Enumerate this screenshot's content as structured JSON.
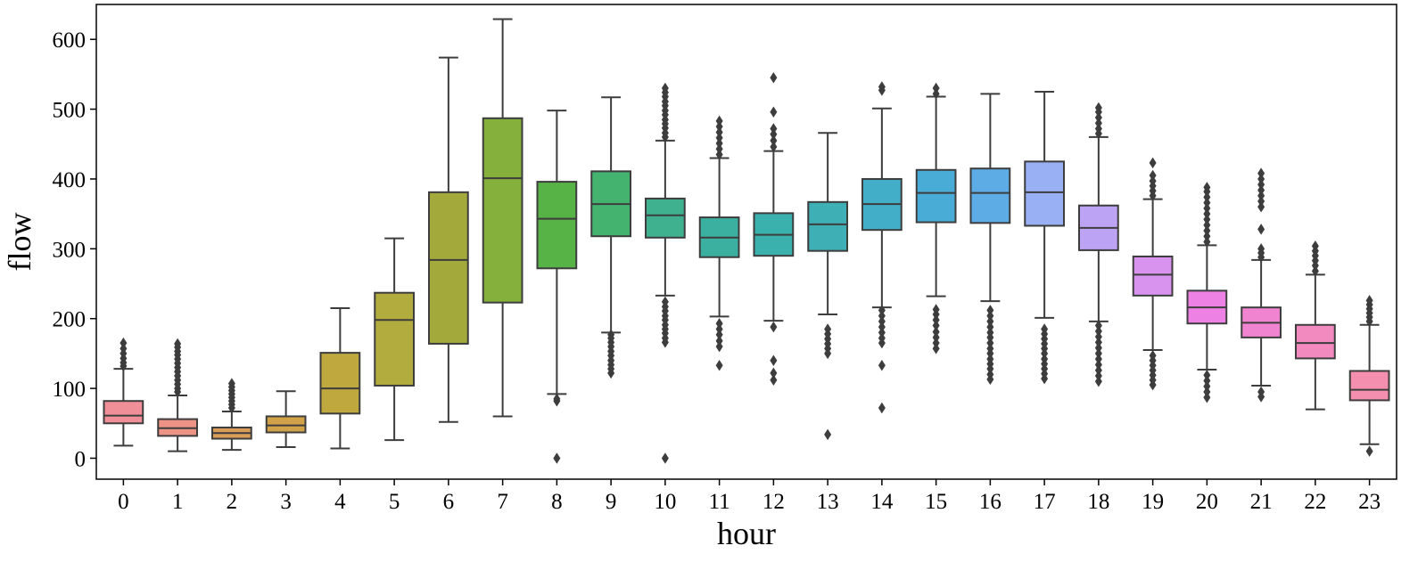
{
  "chart_data": {
    "type": "boxplot",
    "title": "",
    "xlabel": "hour",
    "ylabel": "flow",
    "ylim": [
      -30,
      650
    ],
    "yticks": [
      0,
      100,
      200,
      300,
      400,
      500,
      600
    ],
    "grid": false,
    "categories": [
      "0",
      "1",
      "2",
      "3",
      "4",
      "5",
      "6",
      "7",
      "8",
      "9",
      "10",
      "11",
      "12",
      "13",
      "14",
      "15",
      "16",
      "17",
      "18",
      "19",
      "20",
      "21",
      "22",
      "23"
    ],
    "colors": [
      "#f08f97",
      "#ec9385",
      "#d99d57",
      "#d2a249",
      "#bfa83d",
      "#b1ac3d",
      "#a3a93b",
      "#86b03c",
      "#57b345",
      "#43b36f",
      "#3fb18f",
      "#3cb0a0",
      "#3bb1ad",
      "#3eafb5",
      "#42aec7",
      "#48acd7",
      "#5dace6",
      "#9ab0f4",
      "#bca3f3",
      "#d893ee",
      "#ee81e4",
      "#f084d1",
      "#f28ac0",
      "#f48faf"
    ],
    "boxes": [
      {
        "q1": 50,
        "median": 61,
        "q3": 82,
        "whisker_low": 18,
        "whisker_high": 128,
        "outliers": [
          132,
          137,
          143,
          150,
          157,
          165
        ]
      },
      {
        "q1": 32,
        "median": 43,
        "q3": 56,
        "whisker_low": 10,
        "whisker_high": 90,
        "outliers": [
          95,
          100,
          106,
          112,
          118,
          124,
          130,
          136,
          142,
          148,
          153,
          159,
          164
        ]
      },
      {
        "q1": 28,
        "median": 36,
        "q3": 44,
        "whisker_low": 12,
        "whisker_high": 67,
        "outliers": [
          72,
          77,
          82,
          87,
          92,
          97,
          102,
          107
        ]
      },
      {
        "q1": 37,
        "median": 47,
        "q3": 60,
        "whisker_low": 16,
        "whisker_high": 96,
        "outliers": []
      },
      {
        "q1": 64,
        "median": 100,
        "q3": 151,
        "whisker_low": 14,
        "whisker_high": 215,
        "outliers": []
      },
      {
        "q1": 104,
        "median": 198,
        "q3": 237,
        "whisker_low": 26,
        "whisker_high": 315,
        "outliers": []
      },
      {
        "q1": 164,
        "median": 284,
        "q3": 381,
        "whisker_low": 52,
        "whisker_high": 574,
        "outliers": []
      },
      {
        "q1": 223,
        "median": 401,
        "q3": 487,
        "whisker_low": 60,
        "whisker_high": 629,
        "outliers": []
      },
      {
        "q1": 272,
        "median": 343,
        "q3": 396,
        "whisker_low": 92,
        "whisker_high": 498,
        "outliers": [
          0,
          82,
          85
        ]
      },
      {
        "q1": 318,
        "median": 364,
        "q3": 411,
        "whisker_low": 180,
        "whisker_high": 517,
        "outliers": [
          122,
          128,
          134,
          140,
          147,
          153,
          160,
          166,
          172,
          177
        ]
      },
      {
        "q1": 316,
        "median": 348,
        "q3": 372,
        "whisker_low": 233,
        "whisker_high": 455,
        "outliers": [
          0,
          166,
          172,
          179,
          185,
          191,
          198,
          204,
          211,
          217,
          224,
          460,
          466,
          473,
          479,
          485,
          492,
          498,
          505,
          511,
          518,
          524,
          530
        ]
      },
      {
        "q1": 288,
        "median": 316,
        "q3": 345,
        "whisker_low": 203,
        "whisker_high": 430,
        "outliers": [
          133,
          160,
          168,
          177,
          185,
          193,
          435,
          443,
          451,
          459,
          467,
          475,
          483
        ]
      },
      {
        "q1": 290,
        "median": 320,
        "q3": 351,
        "whisker_low": 197,
        "whisker_high": 440,
        "outliers": [
          112,
          122,
          140,
          188,
          446,
          455,
          464,
          472,
          496,
          545
        ]
      },
      {
        "q1": 297,
        "median": 335,
        "q3": 367,
        "whisker_low": 206,
        "whisker_high": 466,
        "outliers": [
          34,
          150,
          157,
          164,
          171,
          178,
          185
        ]
      },
      {
        "q1": 327,
        "median": 364,
        "q3": 400,
        "whisker_low": 216,
        "whisker_high": 501,
        "outliers": [
          72,
          133,
          165,
          172,
          180,
          188,
          196,
          204,
          212,
          527,
          532
        ]
      },
      {
        "q1": 338,
        "median": 380,
        "q3": 413,
        "whisker_low": 232,
        "whisker_high": 518,
        "outliers": [
          157,
          165,
          173,
          181,
          190,
          198,
          206,
          213,
          522,
          530
        ]
      },
      {
        "q1": 337,
        "median": 380,
        "q3": 415,
        "whisker_low": 225,
        "whisker_high": 522,
        "outliers": [
          113,
          120,
          128,
          135,
          142,
          150,
          157,
          165,
          173,
          180,
          188,
          196,
          204,
          212
        ]
      },
      {
        "q1": 333,
        "median": 381,
        "q3": 425,
        "whisker_low": 201,
        "whisker_high": 525,
        "outliers": [
          114,
          121,
          128,
          135,
          142,
          150,
          157,
          164,
          171,
          178,
          185
        ]
      },
      {
        "q1": 298,
        "median": 330,
        "q3": 362,
        "whisker_low": 196,
        "whisker_high": 460,
        "outliers": [
          110,
          118,
          126,
          134,
          142,
          150,
          158,
          166,
          174,
          182,
          190,
          465,
          472,
          480,
          488,
          496,
          502
        ]
      },
      {
        "q1": 233,
        "median": 263,
        "q3": 289,
        "whisker_low": 155,
        "whisker_high": 371,
        "outliers": [
          105,
          112,
          119,
          126,
          133,
          140,
          147,
          376,
          383,
          390,
          397,
          405,
          423
        ]
      },
      {
        "q1": 193,
        "median": 216,
        "q3": 240,
        "whisker_low": 127,
        "whisker_high": 305,
        "outliers": [
          87,
          95,
          103,
          111,
          119,
          310,
          318,
          326,
          334,
          342,
          350,
          358,
          366,
          374,
          382,
          388
        ]
      },
      {
        "q1": 173,
        "median": 194,
        "q3": 216,
        "whisker_low": 104,
        "whisker_high": 284,
        "outliers": [
          88,
          95,
          288,
          294,
          300,
          328,
          360,
          368,
          376,
          384,
          392,
          400,
          408
        ]
      },
      {
        "q1": 143,
        "median": 165,
        "q3": 191,
        "whisker_low": 70,
        "whisker_high": 263,
        "outliers": [
          268,
          276,
          283,
          290,
          297,
          304
        ]
      },
      {
        "q1": 83,
        "median": 98,
        "q3": 125,
        "whisker_low": 20,
        "whisker_high": 191,
        "outliers": [
          10,
          196,
          202,
          208,
          214,
          220,
          226
        ]
      }
    ]
  }
}
